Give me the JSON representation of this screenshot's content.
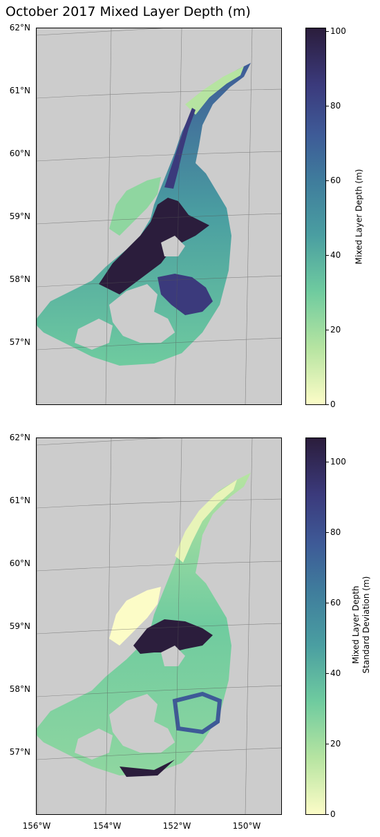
{
  "title": "October 2017 Mixed Layer Depth (m)",
  "lat_ticks": [
    "62°N",
    "61°N",
    "60°N",
    "59°N",
    "58°N",
    "57°N"
  ],
  "lon_ticks": [
    "156°W",
    "154°W",
    "152°W",
    "150°W"
  ],
  "colormap": [
    "#fcfcc7",
    "#b6e4a1",
    "#6fcb9f",
    "#4a9ea1",
    "#3f7b9c",
    "#3e5a97",
    "#3b3a7c",
    "#2b1d3c"
  ],
  "land_color": "#cccccc",
  "panels": [
    {
      "colorbar_label": "Mixed Layer Depth (m)",
      "colorbar_label_line2": "",
      "colorbar_ticks": [
        "0",
        "20",
        "40",
        "60",
        "80",
        "100"
      ],
      "colorbar_max": 101
    },
    {
      "colorbar_label": "Mixed Layer Depth",
      "colorbar_label_line2": "Standard Deviation (m)",
      "colorbar_ticks": [
        "0",
        "20",
        "40",
        "60",
        "80",
        "100"
      ],
      "colorbar_max": 107
    }
  ]
}
